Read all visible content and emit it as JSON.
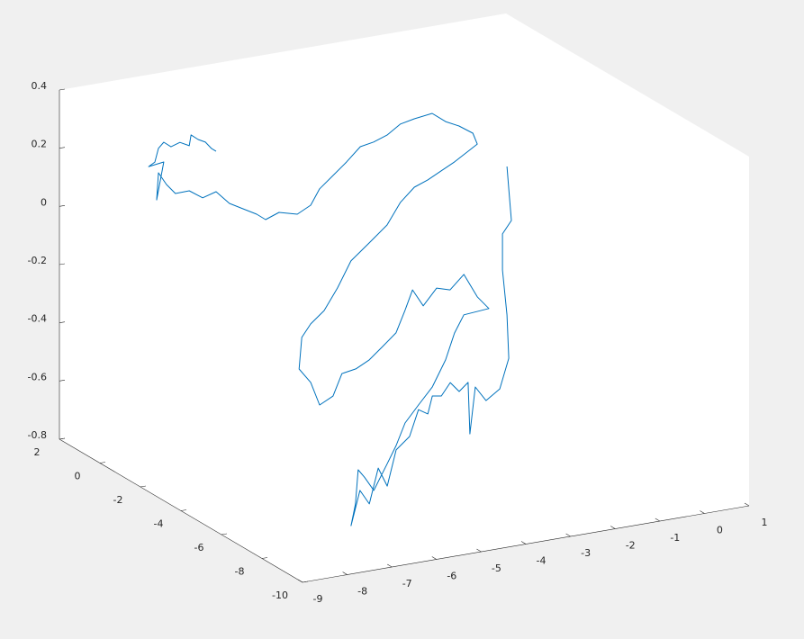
{
  "chart_data": {
    "type": "line",
    "xlim": [
      -9,
      1
    ],
    "ylim": [
      -10,
      2
    ],
    "zlim": [
      -0.8,
      0.4
    ],
    "xticks": [
      -9,
      -8,
      -7,
      -6,
      -5,
      -4,
      -3,
      -2,
      -1,
      0,
      1
    ],
    "yticks": [
      -10,
      -8,
      -6,
      -4,
      -2,
      0,
      2
    ],
    "zticks": [
      -0.8,
      -0.6,
      -0.4,
      -0.2,
      0,
      0.2,
      0.4
    ],
    "grid": false,
    "series": [
      {
        "color": "#0072bd",
        "x": [
          -6.4,
          -6.5,
          -6.64,
          -6.8,
          -6.96,
          -7.0,
          -7.21,
          -7.41,
          -7.57,
          -7.69,
          -7.77,
          -7.91,
          -7.57,
          -7.73,
          -7.69,
          -7.51,
          -7.31,
          -7.0,
          -6.7,
          -6.4,
          -6.1,
          -5.79,
          -5.49,
          -5.29,
          -4.99,
          -4.58,
          -4.28,
          -4.08,
          -3.78,
          -3.48,
          -3.17,
          -2.87,
          -2.57,
          -2.27,
          -1.96,
          -1.56,
          -1.26,
          -0.96,
          -0.65,
          -0.55,
          -0.75,
          -1.06,
          -1.36,
          -1.66,
          -1.96,
          -2.27,
          -2.57,
          -2.97,
          -3.38,
          -3.68,
          -3.98,
          -4.28,
          -4.48,
          -4.54,
          -4.28,
          -4.08,
          -3.78,
          -3.58,
          -3.27,
          -2.97,
          -2.67,
          -2.37,
          -2.17,
          -2.0,
          -1.76,
          -1.46,
          -1.16,
          -0.85,
          -0.55,
          -0.29,
          -0.85,
          -1.06,
          -1.26,
          -5.64,
          -5.95,
          -6.25,
          -6.45,
          -6.65,
          -6.95,
          -7.16,
          -7.3,
          -7.36,
          -7.46,
          -7.26,
          -7.05,
          -6.85,
          -6.65,
          -6.45,
          -6.15,
          -5.95,
          -5.74,
          -5.64,
          -3.17,
          -2.97,
          -2.77,
          -2.57,
          -2.53,
          -2.41,
          -2.17,
          -1.86,
          -1.66,
          -1.7,
          -1.8,
          -1.8,
          -1.6,
          -1.66,
          -1.7
        ],
        "y": [
          0,
          0,
          0,
          0,
          0,
          0,
          0,
          0,
          0,
          0,
          0,
          0,
          0,
          0,
          0,
          0,
          0,
          0,
          0,
          0,
          0,
          0,
          0,
          0,
          0,
          0,
          0,
          0,
          0,
          0,
          0,
          0,
          0,
          0,
          0,
          0,
          0,
          0,
          0,
          0,
          0,
          0,
          0,
          0,
          0,
          0,
          0,
          0,
          0,
          0,
          0,
          0,
          0,
          0,
          0,
          0,
          0,
          0,
          0,
          0,
          0,
          0,
          0,
          0,
          0,
          0,
          0,
          0,
          0,
          0,
          0,
          0,
          0,
          -9,
          -9,
          -9,
          -9,
          -9,
          -9,
          -9,
          -9,
          -9,
          -9,
          -9,
          -9,
          -9,
          -9,
          -9,
          -9,
          -9,
          -9,
          -9,
          -4,
          -4,
          -4,
          -4,
          -4,
          -4,
          -4,
          -4,
          -4,
          -4,
          -4,
          -4,
          -4,
          -4,
          -4
        ],
        "z": [
          0.203,
          0.215,
          0.241,
          0.254,
          0.274,
          0.238,
          0.255,
          0.245,
          0.265,
          0.247,
          0.202,
          0.19,
          0.197,
          0.071,
          0.163,
          0.118,
          0.082,
          0.083,
          0.051,
          0.064,
          0.016,
          -0.011,
          -0.037,
          -0.061,
          -0.044,
          -0.061,
          -0.038,
          0.013,
          0.051,
          0.089,
          0.134,
          0.142,
          0.158,
          0.188,
          0.198,
          0.206,
          0.17,
          0.147,
          0.114,
          0.074,
          0.055,
          0.026,
          0.003,
          -0.02,
          -0.037,
          -0.081,
          -0.151,
          -0.202,
          -0.253,
          -0.338,
          -0.408,
          -0.446,
          -0.487,
          -0.594,
          -0.647,
          -0.73,
          -0.707,
          -0.635,
          -0.627,
          -0.604,
          -0.566,
          -0.527,
          -0.455,
          -0.389,
          -0.45,
          -0.397,
          -0.411,
          -0.366,
          -0.451,
          -0.498,
          -0.505,
          -0.562,
          -0.649,
          -0.258,
          -0.312,
          -0.366,
          -0.438,
          -0.495,
          -0.579,
          -0.528,
          -0.499,
          -0.615,
          -0.687,
          -0.571,
          -0.623,
          -0.505,
          -0.572,
          -0.453,
          -0.415,
          -0.328,
          -0.348,
          -0.289,
          -0.559,
          -0.518,
          -0.554,
          -0.528,
          -0.706,
          -0.548,
          -0.601,
          -0.569,
          -0.469,
          -0.319,
          -0.162,
          -0.038,
          0.003,
          0.113,
          0.191
        ]
      }
    ]
  }
}
